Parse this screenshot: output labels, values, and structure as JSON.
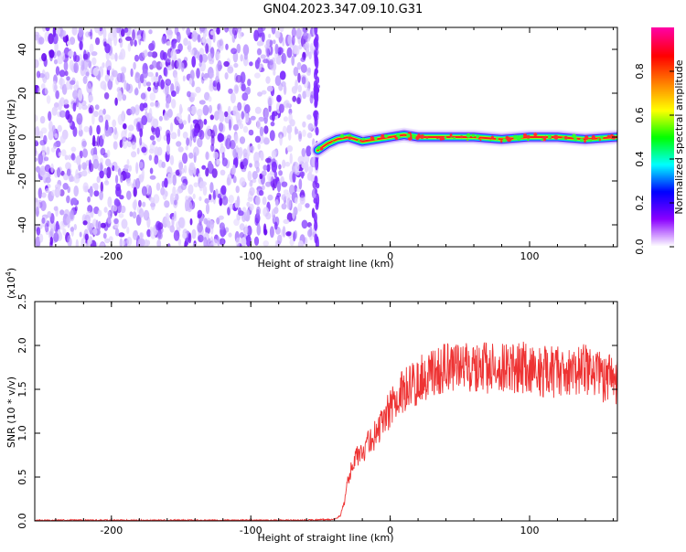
{
  "title": "GN04.2023.347.09.10.G31",
  "chart_data": [
    {
      "type": "heatmap",
      "xlabel": "Height of straight line (km)",
      "ylabel": "Frequency (Hz)",
      "xlim": [
        -255,
        163
      ],
      "ylim": [
        -50,
        50
      ],
      "xticks": [
        -200,
        -100,
        0,
        100
      ],
      "yticks": [
        -40,
        -20,
        0,
        20,
        40
      ],
      "colorbar": {
        "label": "Normalized spectral amplitude",
        "range": [
          0,
          1
        ],
        "ticks": [
          0.0,
          0.2,
          0.4,
          0.6,
          0.8
        ],
        "colormap": [
          "#ffffff",
          "#8a00ff",
          "#0000ff",
          "#00ffff",
          "#00ff00",
          "#ffff00",
          "#ff8000",
          "#ff0000",
          "#ff00a0"
        ]
      },
      "noise_region_x": [
        -255,
        -52
      ],
      "signal_line": {
        "x": [
          -52,
          -45,
          -38,
          -30,
          -20,
          -10,
          0,
          10,
          20,
          40,
          60,
          80,
          100,
          120,
          140,
          163
        ],
        "y": [
          -6,
          -3,
          -1,
          0,
          -2,
          -1,
          0,
          1,
          0,
          0,
          0,
          -1,
          0,
          0,
          -1,
          0
        ]
      }
    },
    {
      "type": "line",
      "xlabel": "Height of straight line (km)",
      "ylabel": "SNR (10 * v/v)",
      "yscale_label": "(x10",
      "yscale_exp": "4",
      "xlim": [
        -255,
        163
      ],
      "ylim": [
        0,
        2.5
      ],
      "xticks": [
        -200,
        -100,
        0,
        100
      ],
      "yticks": [
        0.0,
        0.5,
        1.0,
        1.5,
        2.0,
        2.5
      ],
      "line_color": "#ee3333",
      "series": [
        {
          "x": [
            -255,
            -220,
            -180,
            -140,
            -100,
            -60,
            -40,
            -36,
            -33,
            -30,
            -25,
            -20,
            -15,
            -10,
            -5,
            0,
            5,
            10,
            20,
            30,
            40,
            50,
            60,
            70,
            80,
            90,
            100,
            110,
            120,
            130,
            140,
            150,
            163
          ],
          "values": [
            0.0,
            0.0,
            0.0,
            0.0,
            0.0,
            0.0,
            0.01,
            0.05,
            0.2,
            0.5,
            0.7,
            0.8,
            0.9,
            1.0,
            1.1,
            1.3,
            1.4,
            1.5,
            1.6,
            1.7,
            1.72,
            1.75,
            1.75,
            1.75,
            1.72,
            1.75,
            1.75,
            1.7,
            1.7,
            1.7,
            1.75,
            1.65,
            1.6
          ]
        }
      ]
    }
  ]
}
